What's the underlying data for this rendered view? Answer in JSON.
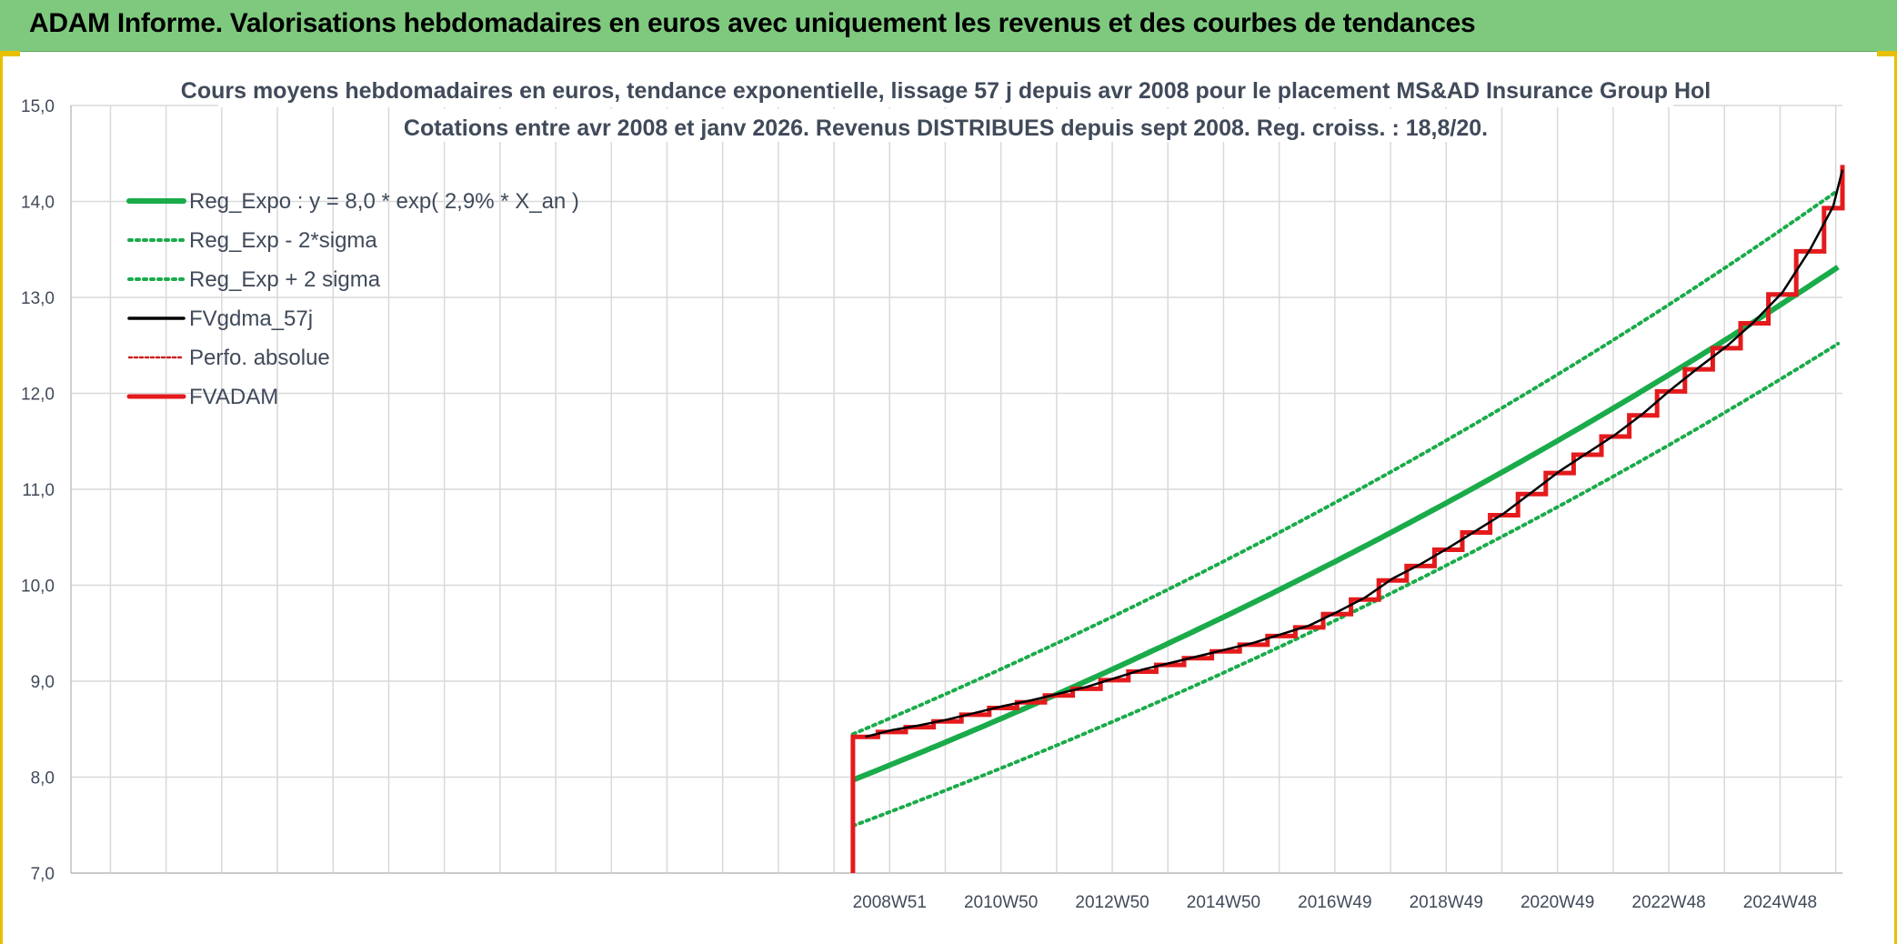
{
  "banner": {
    "title": "ADAM Informe. Valorisations hebdomadaires en euros avec uniquement les revenus et des courbes de tendances"
  },
  "colors": {
    "banner_bg": "#7fc97f",
    "reg_expo": "#1aab4a",
    "fv_gdma": "#000000",
    "perfo": "#cc2222",
    "fvadam": "#e41a1c",
    "grid": "#d9d9d9",
    "accent": "#e8c000"
  },
  "chart_data": {
    "type": "line",
    "title": "Cours moyens hebdomadaires en euros, tendance exponentielle, lissage 57 j depuis avr 2008 pour le placement MS&AD Insurance Group Hol",
    "subtitle": "Cotations entre avr 2008 et janv 2026. Revenus DISTRIBUES depuis sept 2008. Reg. croiss. : 18,8/20.",
    "xlabel": "",
    "ylabel": "",
    "ylim": [
      7.0,
      15.0
    ],
    "xlim": [
      1994.25,
      2026.08
    ],
    "grid": true,
    "legend_position": "top-left",
    "yticks": [
      "7,0",
      "8,0",
      "9,0",
      "10,0",
      "11,0",
      "12,0",
      "13,0",
      "14,0",
      "15,0"
    ],
    "xticks": [
      {
        "label": "2008W51",
        "x": 2008.96
      },
      {
        "label": "2010W50",
        "x": 2010.96
      },
      {
        "label": "2012W50",
        "x": 2012.96
      },
      {
        "label": "2014W50",
        "x": 2014.96
      },
      {
        "label": "2016W49",
        "x": 2016.96
      },
      {
        "label": "2018W49",
        "x": 2018.96
      },
      {
        "label": "2020W49",
        "x": 2020.96
      },
      {
        "label": "2022W48",
        "x": 2022.96
      },
      {
        "label": "2024W48",
        "x": 2024.96
      }
    ],
    "x_start": 2008.3,
    "x_end": 2026.08,
    "reg_expo": {
      "a": 7.97,
      "rate": 0.029,
      "x0": 2008.3,
      "sigma_factor": 0.06
    },
    "fvadam_steps": [
      {
        "x": 2008.3,
        "y": 8.42
      },
      {
        "x": 2008.75,
        "y": 8.47
      },
      {
        "x": 2009.25,
        "y": 8.52
      },
      {
        "x": 2009.75,
        "y": 8.58
      },
      {
        "x": 2010.25,
        "y": 8.65
      },
      {
        "x": 2010.75,
        "y": 8.72
      },
      {
        "x": 2011.25,
        "y": 8.78
      },
      {
        "x": 2011.75,
        "y": 8.85
      },
      {
        "x": 2012.25,
        "y": 8.92
      },
      {
        "x": 2012.75,
        "y": 9.01
      },
      {
        "x": 2013.25,
        "y": 9.1
      },
      {
        "x": 2013.75,
        "y": 9.17
      },
      {
        "x": 2014.25,
        "y": 9.24
      },
      {
        "x": 2014.75,
        "y": 9.31
      },
      {
        "x": 2015.25,
        "y": 9.38
      },
      {
        "x": 2015.75,
        "y": 9.47
      },
      {
        "x": 2016.25,
        "y": 9.56
      },
      {
        "x": 2016.75,
        "y": 9.7
      },
      {
        "x": 2017.25,
        "y": 9.85
      },
      {
        "x": 2017.75,
        "y": 10.05
      },
      {
        "x": 2018.25,
        "y": 10.2
      },
      {
        "x": 2018.75,
        "y": 10.37
      },
      {
        "x": 2019.25,
        "y": 10.55
      },
      {
        "x": 2019.75,
        "y": 10.73
      },
      {
        "x": 2020.25,
        "y": 10.95
      },
      {
        "x": 2020.75,
        "y": 11.17
      },
      {
        "x": 2021.25,
        "y": 11.36
      },
      {
        "x": 2021.75,
        "y": 11.55
      },
      {
        "x": 2022.25,
        "y": 11.77
      },
      {
        "x": 2022.75,
        "y": 12.02
      },
      {
        "x": 2023.25,
        "y": 12.25
      },
      {
        "x": 2023.75,
        "y": 12.47
      },
      {
        "x": 2024.25,
        "y": 12.73
      },
      {
        "x": 2024.75,
        "y": 13.03
      },
      {
        "x": 2025.25,
        "y": 13.48
      },
      {
        "x": 2025.75,
        "y": 13.93
      },
      {
        "x": 2026.08,
        "y": 14.38
      }
    ],
    "series": [
      {
        "name": "Reg_Expo : y = 8,0 * exp( 2,9% *  X_an )"
      },
      {
        "name": "Reg_Exp - 2*sigma"
      },
      {
        "name": "Reg_Exp + 2 sigma"
      },
      {
        "name": "FVgdma_57j"
      },
      {
        "name": "Perfo. absolue"
      },
      {
        "name": "FVADAM"
      }
    ]
  }
}
